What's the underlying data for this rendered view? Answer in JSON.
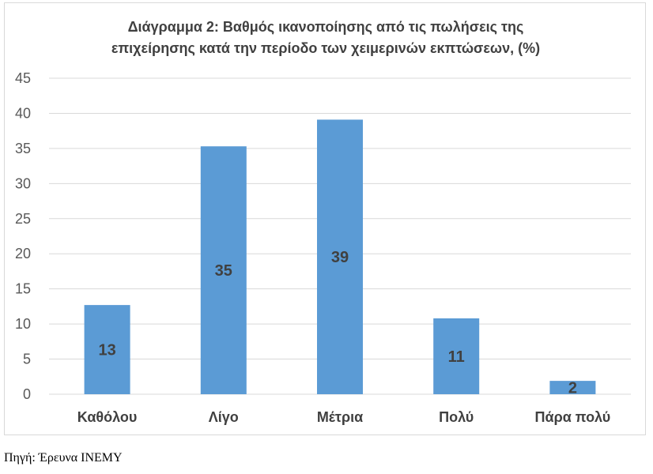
{
  "chart_data": {
    "type": "bar",
    "title_lines": [
      "Διάγραμμα 2: Βαθμός ικανοποίησης από τις πωλήσεις της",
      "επιχείρησης κατά την περίοδο των χειμερινών εκπτώσεων, (%)"
    ],
    "categories": [
      "Καθόλου",
      "Λίγο",
      "Μέτρια",
      "Πολύ",
      "Πάρα πολύ"
    ],
    "values": [
      12.7,
      35.3,
      39.1,
      10.8,
      1.9
    ],
    "data_labels": [
      "13",
      "35",
      "39",
      "11",
      "2"
    ],
    "ylim": [
      0,
      45
    ],
    "yticks": [
      "0",
      "5",
      "10",
      "15",
      "20",
      "25",
      "30",
      "35",
      "40",
      "45"
    ],
    "grid": true,
    "legend": "none",
    "bar_color": "#5b9bd5",
    "grid_color": "#d9d9d9"
  },
  "source": "Πηγή: Έρευνα ΙΝΕΜΥ"
}
